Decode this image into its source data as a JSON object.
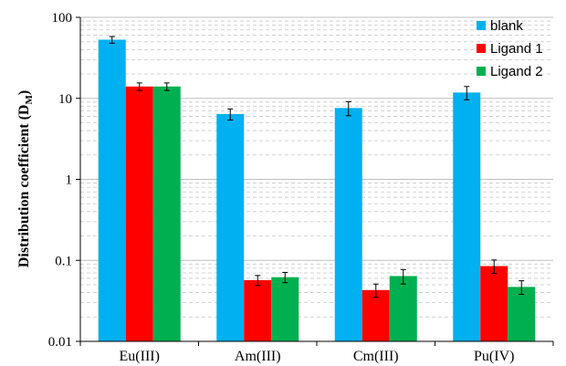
{
  "chart_data": {
    "type": "bar",
    "ylabel": "Distribution coefficient (D",
    "ylabel_sub": "M",
    "ylabel_close": ")",
    "yscale": "log",
    "ylim": [
      0.01,
      100
    ],
    "yticks": [
      {
        "value": 100,
        "label": "100"
      },
      {
        "value": 10,
        "label": "10"
      },
      {
        "value": 1,
        "label": "1"
      },
      {
        "value": 0.1,
        "label": "0.1"
      },
      {
        "value": 0.01,
        "label": "0.01"
      }
    ],
    "grid": "minor-dashed",
    "legend_position": "top-right",
    "categories": [
      "Eu(III)",
      "Am(III)",
      "Cm(III)",
      "Pu(IV)"
    ],
    "series": [
      {
        "name": "blank",
        "color": "#00b0f0",
        "values": [
          53,
          6.4,
          7.6,
          11.8
        ],
        "errors": [
          5,
          1.0,
          1.5,
          2.2
        ]
      },
      {
        "name": "Ligand 1",
        "color": "#ff0000",
        "values": [
          14,
          0.057,
          0.043,
          0.085
        ],
        "errors": [
          1.5,
          0.008,
          0.008,
          0.016
        ]
      },
      {
        "name": "Ligand 2",
        "color": "#00b050",
        "values": [
          14,
          0.062,
          0.064,
          0.047
        ],
        "errors": [
          1.5,
          0.009,
          0.013,
          0.009
        ]
      }
    ]
  }
}
